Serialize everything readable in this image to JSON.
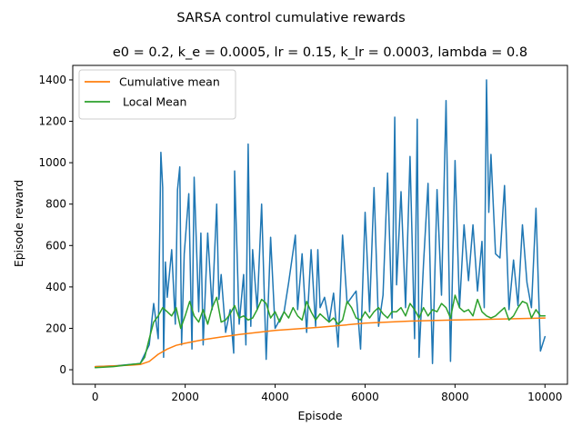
{
  "chart_data": {
    "type": "line",
    "suptitle": "SARSA control cumulative rewards",
    "title": "e0 = 0.2, k_e = 0.0005, lr = 0.15, k_lr = 0.0003, lambda = 0.8",
    "xlabel": "Episode",
    "ylabel": "Episode reward",
    "xlim": [
      -500,
      10500
    ],
    "ylim": [
      -70,
      1470
    ],
    "xticks": [
      0,
      2000,
      4000,
      6000,
      8000,
      10000
    ],
    "yticks": [
      0,
      200,
      400,
      600,
      800,
      1000,
      1200,
      1400
    ],
    "grid": false,
    "legend_position": "upper-left",
    "series": [
      {
        "name": "",
        "color": "#1f77b4",
        "x": [
          0,
          500,
          1000,
          1200,
          1300,
          1400,
          1460,
          1500,
          1520,
          1560,
          1600,
          1700,
          1780,
          1830,
          1880,
          1920,
          1980,
          2080,
          2150,
          2200,
          2300,
          2350,
          2400,
          2500,
          2600,
          2700,
          2750,
          2800,
          2900,
          3000,
          3080,
          3100,
          3200,
          3300,
          3350,
          3400,
          3460,
          3500,
          3600,
          3700,
          3800,
          3900,
          4000,
          4200,
          4300,
          4450,
          4500,
          4600,
          4700,
          4800,
          4900,
          4950,
          5000,
          5100,
          5200,
          5300,
          5400,
          5500,
          5600,
          5800,
          5900,
          6000,
          6100,
          6200,
          6300,
          6400,
          6500,
          6600,
          6660,
          6700,
          6800,
          6900,
          7000,
          7100,
          7160,
          7200,
          7300,
          7400,
          7500,
          7600,
          7700,
          7800,
          7900,
          8000,
          8100,
          8200,
          8300,
          8400,
          8500,
          8600,
          8650,
          8700,
          8750,
          8800,
          8900,
          9000,
          9100,
          9200,
          9300,
          9400,
          9500,
          9600,
          9700,
          9800,
          9900,
          10000
        ],
        "values": [
          15,
          20,
          30,
          120,
          320,
          150,
          1050,
          880,
          60,
          520,
          350,
          580,
          220,
          870,
          980,
          120,
          560,
          850,
          100,
          930,
          280,
          660,
          120,
          660,
          290,
          800,
          340,
          460,
          180,
          290,
          80,
          960,
          220,
          460,
          120,
          1090,
          210,
          580,
          290,
          800,
          50,
          640,
          200,
          280,
          420,
          650,
          290,
          560,
          180,
          580,
          210,
          580,
          300,
          350,
          230,
          370,
          110,
          650,
          320,
          380,
          100,
          760,
          280,
          880,
          210,
          360,
          950,
          250,
          1220,
          410,
          860,
          300,
          1030,
          150,
          1210,
          60,
          510,
          900,
          30,
          870,
          360,
          1300,
          40,
          1010,
          300,
          700,
          430,
          700,
          380,
          620,
          300,
          1400,
          760,
          1040,
          560,
          540,
          890,
          290,
          530,
          310,
          700,
          420,
          300,
          780,
          90,
          160
        ]
      },
      {
        "name": "Cumulative mean",
        "color": "#ff7f0e",
        "x": [
          0,
          400,
          800,
          1000,
          1200,
          1400,
          1600,
          1800,
          2000,
          2400,
          2800,
          3200,
          3600,
          4000,
          5000,
          6000,
          7000,
          8000,
          9000,
          10000
        ],
        "values": [
          15,
          18,
          22,
          25,
          40,
          75,
          100,
          118,
          128,
          145,
          158,
          170,
          180,
          190,
          205,
          225,
          235,
          240,
          245,
          250
        ]
      },
      {
        "name": " Local Mean",
        "color": "#2ca02c",
        "x": [
          0,
          400,
          800,
          1000,
          1100,
          1200,
          1300,
          1400,
          1500,
          1600,
          1700,
          1800,
          1900,
          2000,
          2100,
          2200,
          2300,
          2400,
          2500,
          2600,
          2700,
          2800,
          2900,
          3000,
          3100,
          3200,
          3300,
          3400,
          3500,
          3600,
          3700,
          3800,
          3900,
          4000,
          4100,
          4200,
          4300,
          4400,
          4500,
          4600,
          4700,
          4800,
          4900,
          5000,
          5100,
          5200,
          5300,
          5400,
          5500,
          5600,
          5700,
          5800,
          5900,
          6000,
          6100,
          6200,
          6300,
          6400,
          6500,
          6600,
          6700,
          6800,
          6900,
          7000,
          7100,
          7200,
          7300,
          7400,
          7500,
          7600,
          7700,
          7800,
          7900,
          8000,
          8100,
          8200,
          8300,
          8400,
          8500,
          8600,
          8700,
          8800,
          8900,
          9000,
          9100,
          9200,
          9300,
          9400,
          9500,
          9600,
          9700,
          9800,
          9900,
          10000
        ],
        "values": [
          10,
          15,
          25,
          30,
          60,
          150,
          230,
          260,
          300,
          280,
          260,
          300,
          200,
          260,
          330,
          260,
          230,
          290,
          220,
          300,
          350,
          230,
          240,
          270,
          310,
          250,
          260,
          240,
          250,
          290,
          340,
          320,
          250,
          280,
          230,
          280,
          250,
          300,
          260,
          240,
          330,
          280,
          240,
          270,
          250,
          230,
          250,
          220,
          240,
          330,
          300,
          250,
          240,
          280,
          250,
          280,
          300,
          270,
          250,
          280,
          280,
          300,
          260,
          320,
          290,
          250,
          300,
          260,
          290,
          280,
          320,
          300,
          250,
          360,
          300,
          280,
          290,
          260,
          340,
          280,
          260,
          250,
          260,
          280,
          300,
          240,
          260,
          300,
          330,
          320,
          250,
          290,
          260,
          260
        ]
      }
    ]
  }
}
